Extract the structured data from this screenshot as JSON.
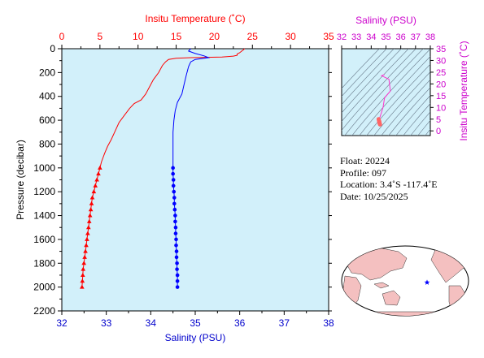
{
  "chart_data": [
    {
      "type": "line",
      "id": "profile",
      "top_axis_label": "Insitu Temperature (˚C)",
      "bottom_axis_label": "Salinity (PSU)",
      "ylabel": "Pressure (decibar)",
      "temp_ticks": [
        "0",
        "5",
        "10",
        "15",
        "20",
        "25",
        "30",
        "35"
      ],
      "sal_ticks": [
        "32",
        "33",
        "34",
        "35",
        "36",
        "37",
        "38"
      ],
      "pres_ticks": [
        "0",
        "200",
        "400",
        "600",
        "800",
        "1000",
        "1200",
        "1400",
        "1600",
        "1800",
        "2000",
        "2200"
      ],
      "temp_range": [
        0,
        35
      ],
      "sal_range": [
        32,
        38
      ],
      "pres_range": [
        0,
        2200
      ],
      "colors": {
        "temperature": "#ff0000",
        "salinity": "#0000ff",
        "background": "#d2f0fa"
      },
      "temperature_profile": [
        [
          24.0,
          0
        ],
        [
          23.8,
          10
        ],
        [
          23.6,
          20
        ],
        [
          23.3,
          35
        ],
        [
          23.0,
          45
        ],
        [
          23.0,
          55
        ],
        [
          22.5,
          62
        ],
        [
          21.0,
          70
        ],
        [
          17.0,
          75
        ],
        [
          15.0,
          80
        ],
        [
          14.0,
          90
        ],
        [
          13.6,
          110
        ],
        [
          13.2,
          140
        ],
        [
          12.7,
          200
        ],
        [
          12.0,
          260
        ],
        [
          11.5,
          320
        ],
        [
          11.0,
          380
        ],
        [
          10.4,
          430
        ],
        [
          9.5,
          460
        ],
        [
          8.9,
          500
        ],
        [
          8.2,
          560
        ],
        [
          7.5,
          620
        ],
        [
          7.0,
          690
        ],
        [
          6.5,
          760
        ],
        [
          6.0,
          820
        ],
        [
          5.6,
          880
        ],
        [
          5.2,
          950
        ],
        [
          5.0,
          1000
        ]
      ],
      "temperature_points": [
        [
          5.0,
          1000
        ],
        [
          4.8,
          1050
        ],
        [
          4.6,
          1100
        ],
        [
          4.4,
          1150
        ],
        [
          4.2,
          1200
        ],
        [
          4.0,
          1250
        ],
        [
          3.9,
          1300
        ],
        [
          3.8,
          1350
        ],
        [
          3.7,
          1400
        ],
        [
          3.6,
          1450
        ],
        [
          3.5,
          1500
        ],
        [
          3.4,
          1550
        ],
        [
          3.3,
          1600
        ],
        [
          3.2,
          1650
        ],
        [
          3.1,
          1700
        ],
        [
          3.0,
          1750
        ],
        [
          2.9,
          1800
        ],
        [
          2.8,
          1850
        ],
        [
          2.75,
          1900
        ],
        [
          2.7,
          1950
        ],
        [
          2.65,
          2000
        ]
      ],
      "salinity_profile": [
        [
          34.9,
          0
        ],
        [
          34.85,
          20
        ],
        [
          35.0,
          40
        ],
        [
          35.2,
          60
        ],
        [
          35.3,
          75
        ],
        [
          35.0,
          90
        ],
        [
          34.9,
          110
        ],
        [
          34.85,
          150
        ],
        [
          34.8,
          220
        ],
        [
          34.75,
          300
        ],
        [
          34.7,
          380
        ],
        [
          34.6,
          450
        ],
        [
          34.55,
          520
        ],
        [
          34.52,
          600
        ],
        [
          34.5,
          700
        ],
        [
          34.5,
          800
        ],
        [
          34.5,
          900
        ],
        [
          34.5,
          1000
        ]
      ],
      "salinity_points": [
        [
          34.5,
          1000
        ],
        [
          34.5,
          1050
        ],
        [
          34.51,
          1100
        ],
        [
          34.51,
          1150
        ],
        [
          34.52,
          1200
        ],
        [
          34.53,
          1250
        ],
        [
          34.53,
          1300
        ],
        [
          34.54,
          1350
        ],
        [
          34.55,
          1400
        ],
        [
          34.55,
          1450
        ],
        [
          34.56,
          1500
        ],
        [
          34.56,
          1550
        ],
        [
          34.57,
          1600
        ],
        [
          34.57,
          1650
        ],
        [
          34.58,
          1700
        ],
        [
          34.58,
          1750
        ],
        [
          34.59,
          1800
        ],
        [
          34.59,
          1850
        ],
        [
          34.6,
          1900
        ],
        [
          34.6,
          1950
        ],
        [
          34.6,
          2000
        ]
      ]
    },
    {
      "type": "scatter",
      "id": "ts_diagram",
      "xlabel": "Salinity (PSU)",
      "ylabel": "Insitu Temperature (˚C)",
      "sal_ticks": [
        "32",
        "33",
        "34",
        "35",
        "36",
        "37",
        "38"
      ],
      "temp_ticks": [
        "0",
        "5",
        "10",
        "15",
        "20",
        "25",
        "30",
        "35"
      ],
      "sal_range": [
        32,
        38
      ],
      "temp_range": [
        -2,
        35
      ],
      "colors": {
        "line": "#ff33cc",
        "points": "#ff6666",
        "axis": "#cc00cc"
      },
      "ts_line": [
        [
          34.9,
          24
        ],
        [
          34.7,
          23.5
        ],
        [
          35.2,
          22
        ],
        [
          35.3,
          17
        ],
        [
          34.9,
          14
        ],
        [
          34.85,
          12
        ],
        [
          34.8,
          10
        ],
        [
          34.7,
          8
        ],
        [
          34.6,
          6
        ],
        [
          34.55,
          5
        ]
      ],
      "ts_points": [
        [
          34.5,
          5
        ],
        [
          34.52,
          4.5
        ],
        [
          34.53,
          4.2
        ],
        [
          34.55,
          4.0
        ],
        [
          34.55,
          3.7
        ],
        [
          34.56,
          3.5
        ],
        [
          34.57,
          3.2
        ],
        [
          34.58,
          3.0
        ],
        [
          34.59,
          2.8
        ],
        [
          34.6,
          2.7
        ]
      ]
    }
  ],
  "float_info": {
    "float": "Float:  20224",
    "profile": "Profile:  097",
    "location": "Location:  3.4˚S  -117.4˚E",
    "date": "Date:  10/25/2025"
  },
  "map": {
    "marker_color": "#0000ff",
    "land_color": "#f4c0c0",
    "ocean_color": "#ffffff"
  }
}
